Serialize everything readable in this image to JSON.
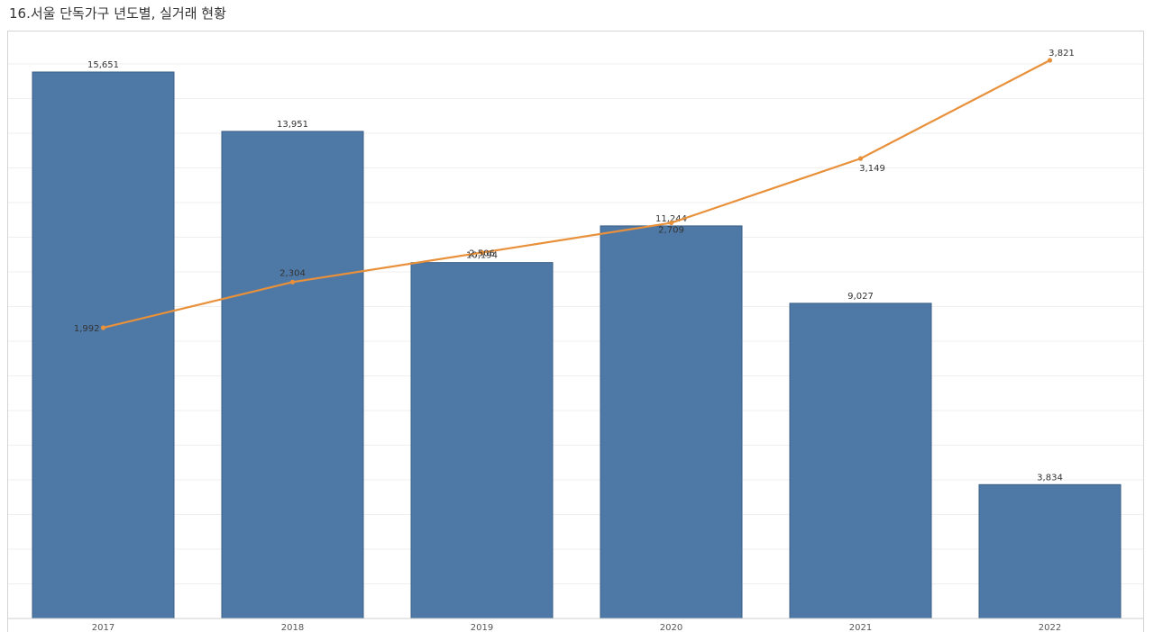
{
  "title": "16.서울 단독가구 년도별, 실거래 현황",
  "colors": {
    "bar": "#4e79a7",
    "bar_border": "#3b5f86",
    "line": "#e8903a",
    "gridline": "#efefef",
    "label": "#333333"
  },
  "chart_data": {
    "type": "bar",
    "categories": [
      "2017",
      "2018",
      "2019",
      "2020",
      "2021",
      "2022"
    ],
    "series": [
      {
        "type": "bar",
        "values": [
          15651,
          13951,
          10194,
          11244,
          9027,
          3834
        ],
        "labels": [
          "15,651",
          "13,951",
          "10,194",
          "11,244",
          "9,027",
          "3,834"
        ]
      },
      {
        "type": "line",
        "values": [
          1992,
          2304,
          2506,
          2709,
          3149,
          3821
        ],
        "labels": [
          "1,992",
          "2,304",
          "2,506",
          "2,709",
          "3,149",
          "3,821"
        ]
      }
    ],
    "grid": true
  }
}
